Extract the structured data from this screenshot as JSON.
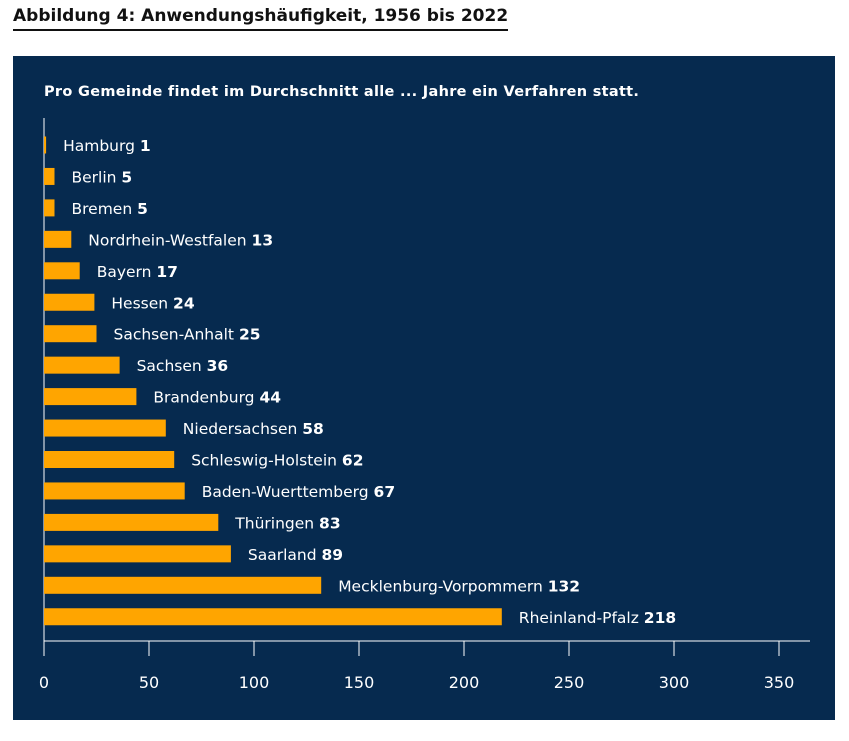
{
  "figure": {
    "title": "Abbildung 4: Anwendungshäufigkeit, 1956 bis 2022"
  },
  "colors": {
    "panel_background": "#062a4f",
    "bar": "#ffa500",
    "text": "#ffffff",
    "axis": "#ffffff",
    "figure_title": "#111111"
  },
  "chart_data": {
    "type": "bar",
    "orientation": "horizontal",
    "title": "Pro Gemeinde findet im Durchschnitt alle ... Jahre ein Verfahren statt.",
    "xlabel": "",
    "ylabel": "",
    "xlim": [
      0,
      350
    ],
    "xticks": [
      0,
      50,
      100,
      150,
      200,
      250,
      300,
      350
    ],
    "grid": false,
    "categories": [
      "Hamburg",
      "Berlin",
      "Bremen",
      "Nordrhein-Westfalen",
      "Bayern",
      "Hessen",
      "Sachsen-Anhalt",
      "Sachsen",
      "Brandenburg",
      "Niedersachsen",
      "Schleswig-Holstein",
      "Baden-Wuerttemberg",
      "Thüringen",
      "Saarland",
      "Mecklenburg-Vorpommern",
      "Rheinland-Pfalz"
    ],
    "values": [
      1,
      5,
      5,
      13,
      17,
      24,
      25,
      36,
      44,
      58,
      62,
      67,
      83,
      89,
      132,
      218
    ]
  }
}
